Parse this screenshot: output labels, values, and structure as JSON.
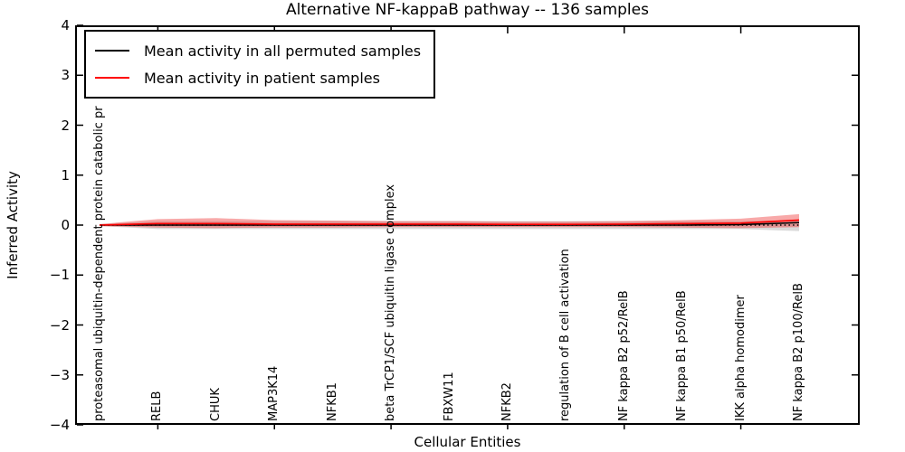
{
  "chart_data": {
    "type": "line",
    "title": "Alternative NF-kappaB pathway -- 136 samples",
    "xlabel": "Cellular Entities",
    "ylabel": "Inferred Activity",
    "ylim": [
      -4,
      4
    ],
    "yticks": [
      4,
      3,
      2,
      1,
      0,
      -1,
      -2,
      -3,
      -4
    ],
    "grid": false,
    "categories": [
      "proteasomal ubiquitin-dependent protein catabolic pr",
      "RELB",
      "CHUK",
      "MAP3K14",
      "NFKB1",
      "beta TrCP1/SCF ubiquitin ligase complex",
      "FBXW11",
      "NFKB2",
      "regulation of B cell activation",
      "NF kappa B2 p52/RelB",
      "NF kappa B1 p50/RelB",
      "IKK alpha homodimer",
      "NF kappa B2 p100/RelB"
    ],
    "series": [
      {
        "name": "Mean activity in all permuted samples",
        "color": "#000000",
        "values": [
          0,
          0,
          0,
          0,
          0,
          0,
          0,
          0,
          0,
          0,
          0,
          0.01,
          0.05
        ]
      },
      {
        "name": "Mean activity in patient samples",
        "color": "#ff0000",
        "values": [
          0,
          0.03,
          0.03,
          0.02,
          0.02,
          0.02,
          0.02,
          0.015,
          0.015,
          0.02,
          0.03,
          0.04,
          0.1
        ]
      }
    ],
    "bands": [
      {
        "name": "permuted-samples-band",
        "color": "#bbbbbb",
        "opacity": 0.55,
        "upper": [
          0.02,
          0.08,
          0.08,
          0.08,
          0.08,
          0.08,
          0.08,
          0.08,
          0.08,
          0.08,
          0.08,
          0.08,
          0.1
        ],
        "lower": [
          -0.02,
          -0.08,
          -0.08,
          -0.08,
          -0.08,
          -0.08,
          -0.08,
          -0.08,
          -0.08,
          -0.08,
          -0.08,
          -0.08,
          -0.12
        ]
      },
      {
        "name": "patient-samples-band",
        "color": "#ee3333",
        "opacity": 0.42,
        "upper": [
          0.02,
          0.12,
          0.14,
          0.1,
          0.09,
          0.08,
          0.08,
          0.07,
          0.07,
          0.08,
          0.1,
          0.13,
          0.22
        ],
        "lower": [
          -0.02,
          -0.05,
          -0.06,
          -0.05,
          -0.05,
          -0.04,
          -0.04,
          -0.04,
          -0.04,
          -0.04,
          -0.05,
          -0.06,
          -0.04
        ]
      }
    ],
    "zero_line": {
      "value": 0,
      "style": "dotted",
      "color": "#000000"
    },
    "legend": {
      "position": "upper-left"
    }
  }
}
